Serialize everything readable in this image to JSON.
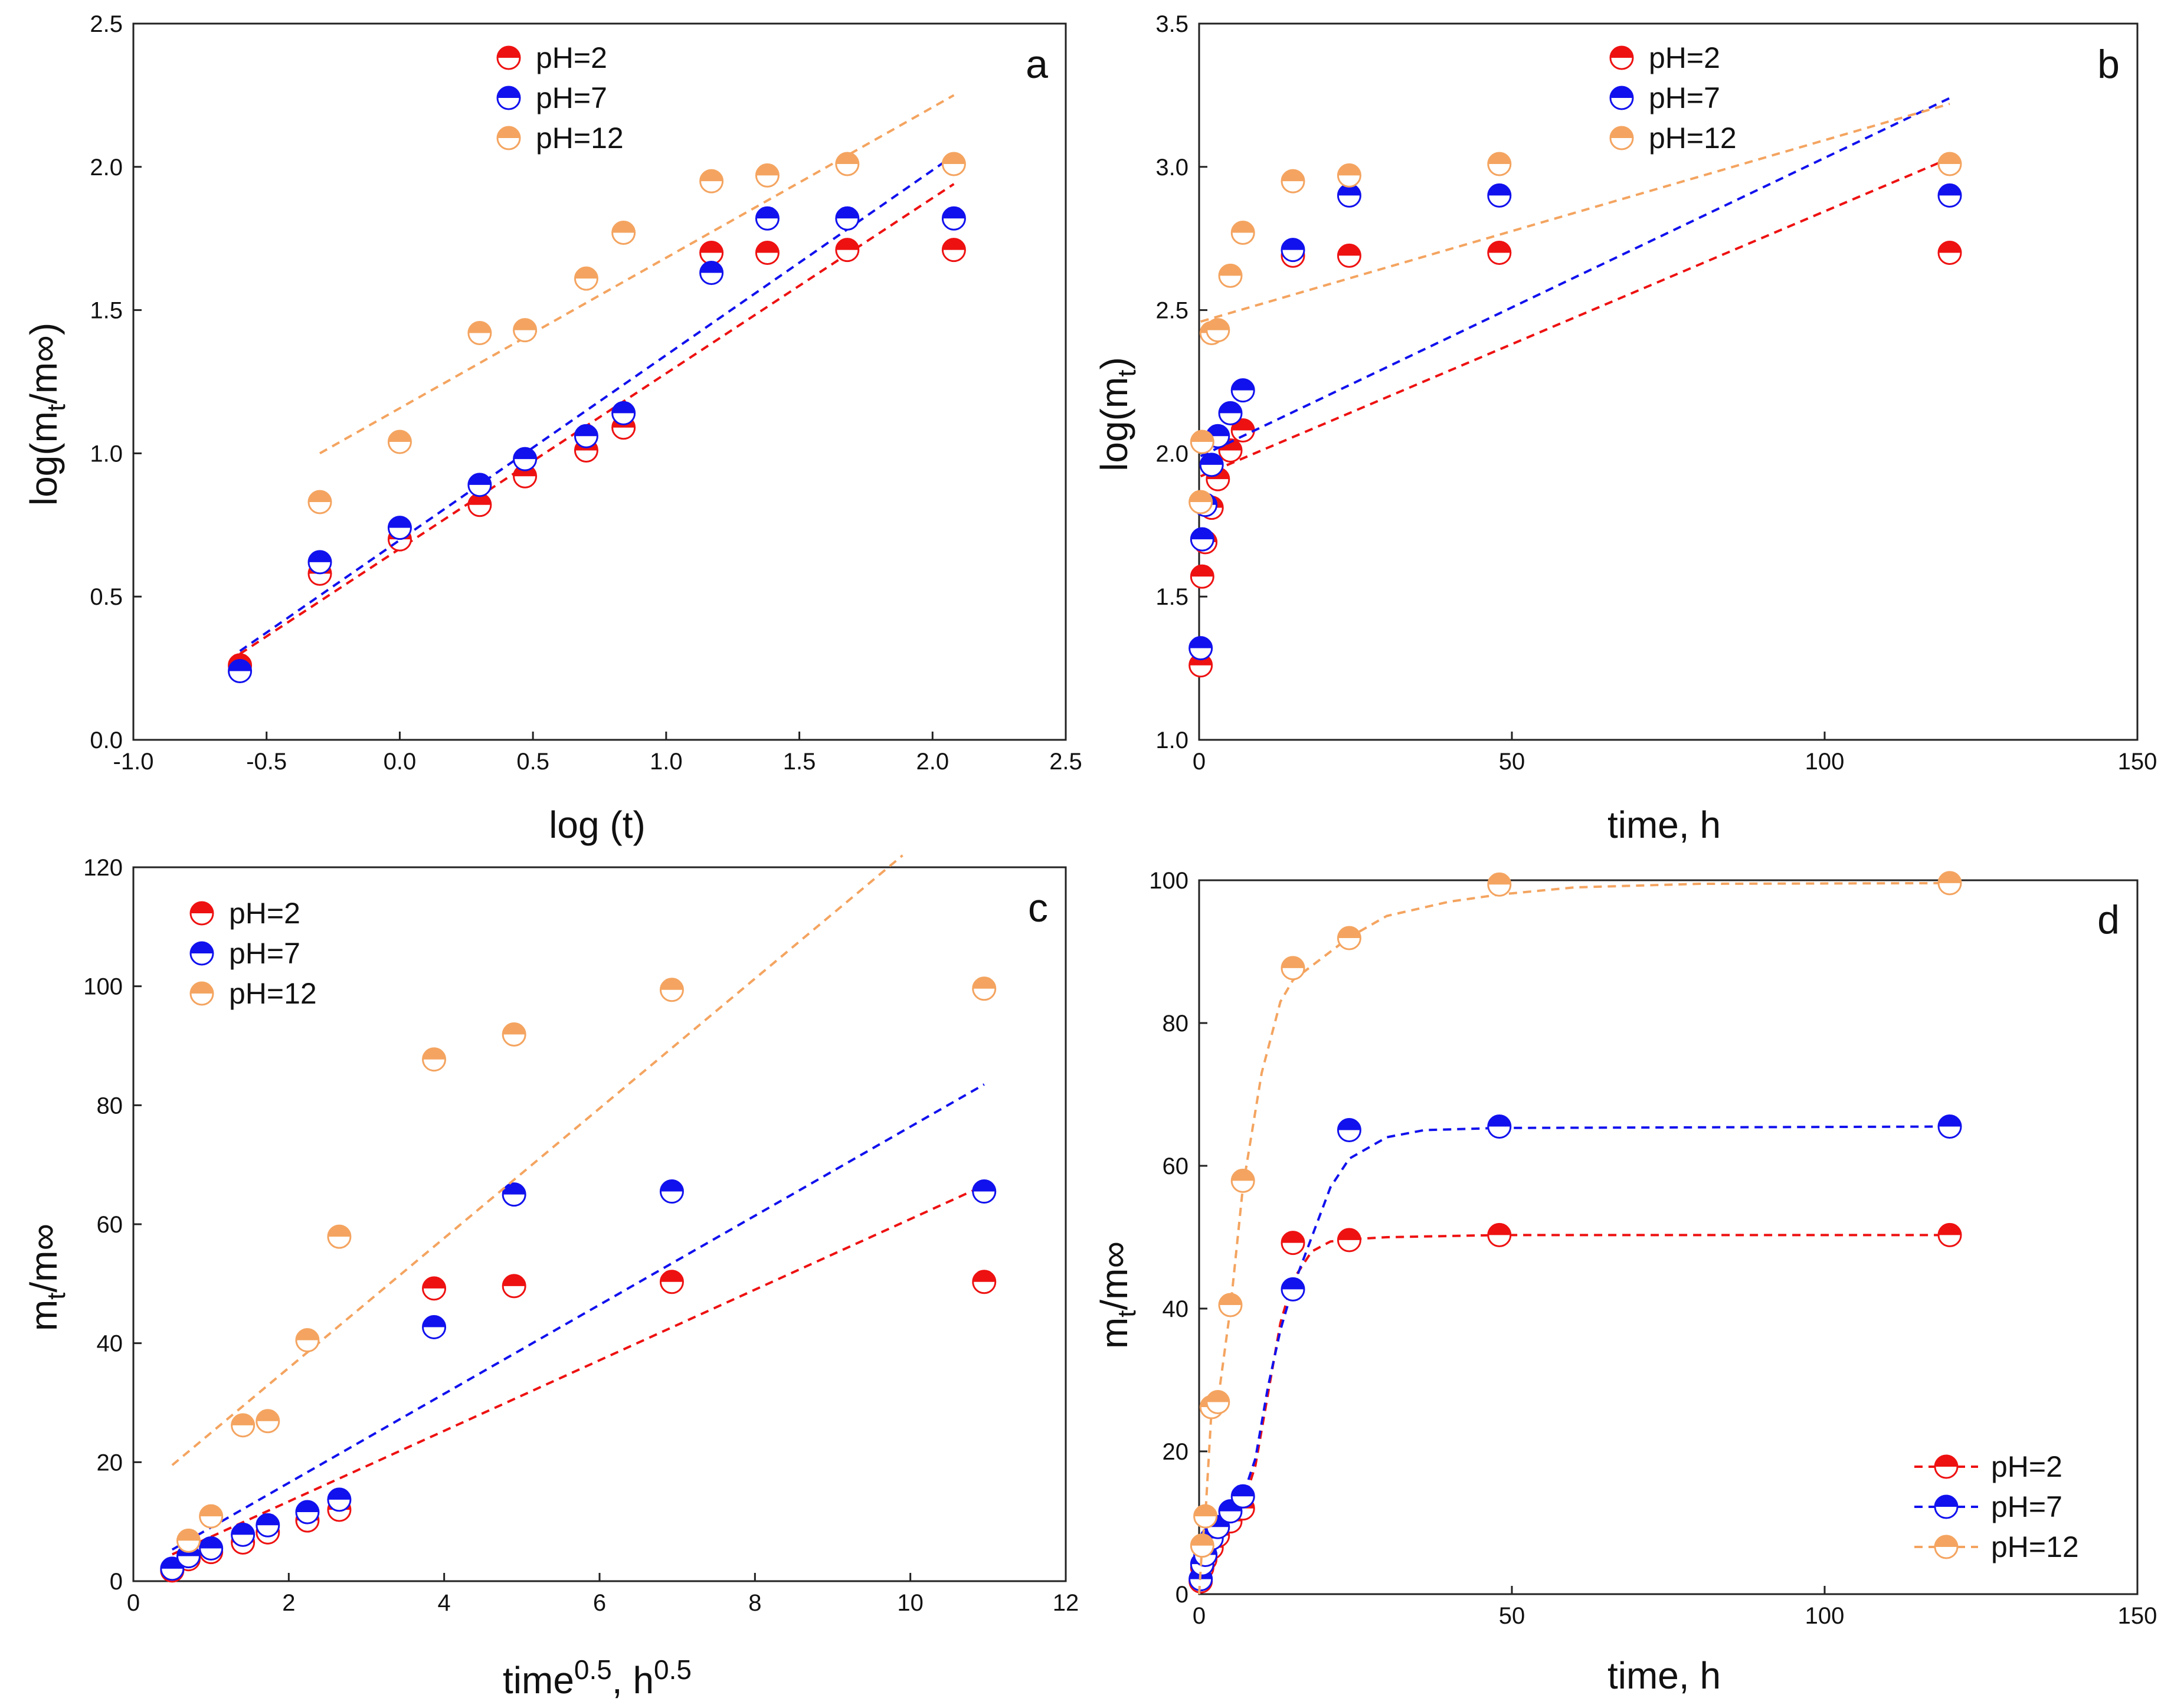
{
  "chart_data": [
    {
      "panel": "a",
      "type": "scatter",
      "title": "",
      "xlabel": "log (t)",
      "ylabel": "log(mt/m∞)",
      "xlim": [
        -1.0,
        2.5
      ],
      "ylim": [
        0.0,
        2.5
      ],
      "xticks": [
        "-1.0",
        "-0.5",
        "0.0",
        "0.5",
        "1.0",
        "1.5",
        "2.0",
        "2.5"
      ],
      "yticks": [
        "0.0",
        "0.5",
        "1.0",
        "1.5",
        "2.0",
        "2.5"
      ],
      "legend_position": "top-center",
      "series": [
        {
          "name": "pH=2",
          "color": "#ee1111",
          "points": [
            [
              -0.6,
              0.26
            ],
            [
              -0.3,
              0.58
            ],
            [
              0.0,
              0.7
            ],
            [
              0.3,
              0.82
            ],
            [
              0.47,
              0.92
            ],
            [
              0.7,
              1.01
            ],
            [
              0.84,
              1.09
            ],
            [
              1.17,
              1.7
            ],
            [
              1.38,
              1.7
            ],
            [
              1.68,
              1.71
            ],
            [
              2.08,
              1.71
            ]
          ],
          "fit": [
            [
              -0.6,
              0.3
            ],
            [
              2.08,
              1.94
            ]
          ]
        },
        {
          "name": "pH=7",
          "color": "#1111ee",
          "points": [
            [
              -0.6,
              0.24
            ],
            [
              -0.3,
              0.62
            ],
            [
              0.0,
              0.74
            ],
            [
              0.3,
              0.89
            ],
            [
              0.47,
              0.98
            ],
            [
              0.7,
              1.06
            ],
            [
              0.84,
              1.14
            ],
            [
              1.17,
              1.63
            ],
            [
              1.38,
              1.82
            ],
            [
              1.68,
              1.82
            ],
            [
              2.08,
              1.82
            ]
          ],
          "fit": [
            [
              -0.6,
              0.31
            ],
            [
              2.08,
              2.04
            ]
          ]
        },
        {
          "name": "pH=12",
          "color": "#f4a460",
          "points": [
            [
              -0.3,
              0.83
            ],
            [
              0.0,
              1.04
            ],
            [
              0.3,
              1.42
            ],
            [
              0.47,
              1.43
            ],
            [
              0.7,
              1.61
            ],
            [
              0.84,
              1.77
            ],
            [
              1.17,
              1.95
            ],
            [
              1.38,
              1.97
            ],
            [
              1.68,
              2.01
            ],
            [
              2.08,
              2.01
            ]
          ],
          "fit": [
            [
              -0.3,
              1.0
            ],
            [
              2.08,
              2.25
            ]
          ]
        }
      ]
    },
    {
      "panel": "b",
      "type": "scatter",
      "title": "",
      "xlabel": "time, h",
      "ylabel": "log(mt)",
      "xlim": [
        0,
        150
      ],
      "ylim": [
        1.0,
        3.5
      ],
      "xticks": [
        "0",
        "50",
        "100",
        "150"
      ],
      "yticks": [
        "1.0",
        "1.5",
        "2.0",
        "2.5",
        "3.0",
        "3.5"
      ],
      "legend_position": "top-center",
      "series": [
        {
          "name": "pH=2",
          "color": "#ee1111",
          "points": [
            [
              0.25,
              1.26
            ],
            [
              0.5,
              1.57
            ],
            [
              1,
              1.69
            ],
            [
              2,
              1.81
            ],
            [
              3,
              1.91
            ],
            [
              5,
              2.01
            ],
            [
              7,
              2.08
            ],
            [
              15,
              2.69
            ],
            [
              24,
              2.69
            ],
            [
              48,
              2.7
            ],
            [
              120,
              2.7
            ]
          ],
          "fit": [
            [
              0.25,
              1.92
            ],
            [
              120,
              3.03
            ]
          ]
        },
        {
          "name": "pH=7",
          "color": "#1111ee",
          "points": [
            [
              0.25,
              1.32
            ],
            [
              0.5,
              1.7
            ],
            [
              1,
              1.82
            ],
            [
              2,
              1.96
            ],
            [
              3,
              2.06
            ],
            [
              5,
              2.14
            ],
            [
              7,
              2.22
            ],
            [
              15,
              2.71
            ],
            [
              24,
              2.9
            ],
            [
              48,
              2.9
            ],
            [
              120,
              2.9
            ]
          ],
          "fit": [
            [
              0.25,
              1.99
            ],
            [
              120,
              3.24
            ]
          ]
        },
        {
          "name": "pH=12",
          "color": "#f4a460",
          "points": [
            [
              0.25,
              1.83
            ],
            [
              0.5,
              2.04
            ],
            [
              2,
              2.42
            ],
            [
              3,
              2.43
            ],
            [
              5,
              2.62
            ],
            [
              7,
              2.77
            ],
            [
              15,
              2.95
            ],
            [
              24,
              2.97
            ],
            [
              48,
              3.01
            ],
            [
              120,
              3.01
            ]
          ],
          "fit": [
            [
              0.25,
              2.46
            ],
            [
              120,
              3.22
            ]
          ]
        }
      ]
    },
    {
      "panel": "c",
      "type": "scatter",
      "title": "",
      "xlabel": "time0.5, h0.5",
      "ylabel": "mt/m∞",
      "xlim": [
        0,
        12
      ],
      "ylim": [
        0,
        120
      ],
      "xticks": [
        "0",
        "2",
        "4",
        "6",
        "8",
        "10",
        "12"
      ],
      "yticks": [
        "0",
        "20",
        "40",
        "60",
        "80",
        "100",
        "120"
      ],
      "legend_position": "top-left",
      "series": [
        {
          "name": "pH=2",
          "color": "#ee1111",
          "points": [
            [
              0.5,
              1.8
            ],
            [
              0.71,
              3.7
            ],
            [
              1.0,
              4.9
            ],
            [
              1.41,
              6.5
            ],
            [
              1.73,
              8.2
            ],
            [
              2.24,
              10.2
            ],
            [
              2.65,
              12.0
            ],
            [
              3.87,
              49.2
            ],
            [
              4.9,
              49.6
            ],
            [
              6.93,
              50.3
            ],
            [
              10.95,
              50.3
            ]
          ],
          "fit": [
            [
              0.5,
              4.5
            ],
            [
              10.95,
              66.5
            ]
          ]
        },
        {
          "name": "pH=7",
          "color": "#1111ee",
          "points": [
            [
              0.5,
              2.1
            ],
            [
              0.71,
              4.2
            ],
            [
              1.0,
              5.5
            ],
            [
              1.41,
              7.8
            ],
            [
              1.73,
              9.4
            ],
            [
              2.24,
              11.6
            ],
            [
              2.65,
              13.7
            ],
            [
              3.87,
              42.7
            ],
            [
              4.9,
              65.0
            ],
            [
              6.93,
              65.5
            ],
            [
              10.95,
              65.5
            ]
          ],
          "fit": [
            [
              0.5,
              5.3
            ],
            [
              10.95,
              83.5
            ]
          ]
        },
        {
          "name": "pH=12",
          "color": "#f4a460",
          "points": [
            [
              0.71,
              6.8
            ],
            [
              1.0,
              10.9
            ],
            [
              1.41,
              26.2
            ],
            [
              1.73,
              26.9
            ],
            [
              2.24,
              40.5
            ],
            [
              2.65,
              57.9
            ],
            [
              3.87,
              87.7
            ],
            [
              4.9,
              91.9
            ],
            [
              6.93,
              99.4
            ],
            [
              10.95,
              99.6
            ]
          ],
          "fit": [
            [
              0.5,
              19.5
            ],
            [
              9.9,
              122
            ]
          ]
        }
      ]
    },
    {
      "panel": "d",
      "type": "scatter",
      "title": "",
      "xlabel": "time, h",
      "ylabel": "mt/m∞",
      "xlim": [
        0,
        150
      ],
      "ylim": [
        0,
        100
      ],
      "xticks": [
        "0",
        "50",
        "100",
        "150"
      ],
      "yticks": [
        "0",
        "20",
        "40",
        "60",
        "80",
        "100"
      ],
      "legend_position": "bottom-right",
      "series": [
        {
          "name": "pH=2",
          "color": "#ee1111",
          "points": [
            [
              0.25,
              1.8
            ],
            [
              0.5,
              3.7
            ],
            [
              1,
              4.9
            ],
            [
              2,
              6.5
            ],
            [
              3,
              8.2
            ],
            [
              5,
              10.2
            ],
            [
              7,
              12.0
            ],
            [
              15,
              49.2
            ],
            [
              24,
              49.6
            ],
            [
              48,
              50.3
            ],
            [
              120,
              50.3
            ]
          ],
          "fit": [
            [
              0,
              0
            ],
            [
              1,
              4.5
            ],
            [
              2,
              6.5
            ],
            [
              3,
              8
            ],
            [
              5,
              10
            ],
            [
              7,
              12.5
            ],
            [
              9,
              18
            ],
            [
              11,
              28
            ],
            [
              13,
              38
            ],
            [
              15,
              44
            ],
            [
              18,
              48
            ],
            [
              21,
              49.4
            ],
            [
              24,
              49.7
            ],
            [
              30,
              50
            ],
            [
              48,
              50.3
            ],
            [
              120,
              50.3
            ]
          ]
        },
        {
          "name": "pH=7",
          "color": "#1111ee",
          "points": [
            [
              0.25,
              2.1
            ],
            [
              0.5,
              4.2
            ],
            [
              1,
              5.5
            ],
            [
              2,
              7.8
            ],
            [
              3,
              9.4
            ],
            [
              5,
              11.6
            ],
            [
              7,
              13.7
            ],
            [
              15,
              42.7
            ],
            [
              24,
              65.0
            ],
            [
              48,
              65.5
            ],
            [
              120,
              65.5
            ]
          ],
          "fit": [
            [
              0,
              0
            ],
            [
              1,
              5.5
            ],
            [
              2,
              7.8
            ],
            [
              3,
              9.4
            ],
            [
              5,
              11.6
            ],
            [
              7,
              13.7
            ],
            [
              9,
              19
            ],
            [
              11,
              29
            ],
            [
              13,
              37
            ],
            [
              15,
              43
            ],
            [
              18,
              50
            ],
            [
              21,
              57
            ],
            [
              24,
              61
            ],
            [
              30,
              64
            ],
            [
              36,
              65
            ],
            [
              48,
              65.3
            ],
            [
              120,
              65.5
            ]
          ]
        },
        {
          "name": "pH=12",
          "color": "#f4a460",
          "points": [
            [
              0.5,
              6.8
            ],
            [
              1,
              10.9
            ],
            [
              2,
              26.2
            ],
            [
              3,
              26.9
            ],
            [
              5,
              40.5
            ],
            [
              7,
              57.9
            ],
            [
              15,
              87.7
            ],
            [
              24,
              91.9
            ],
            [
              48,
              99.4
            ],
            [
              120,
              99.6
            ]
          ],
          "fit": [
            [
              0,
              0
            ],
            [
              0.5,
              7
            ],
            [
              1,
              11
            ],
            [
              2,
              26
            ],
            [
              3,
              27
            ],
            [
              5,
              40
            ],
            [
              7,
              57
            ],
            [
              10,
              73
            ],
            [
              13,
              83
            ],
            [
              15,
              86
            ],
            [
              18,
              88
            ],
            [
              24,
              92
            ],
            [
              30,
              95
            ],
            [
              40,
              97
            ],
            [
              48,
              98
            ],
            [
              60,
              99
            ],
            [
              80,
              99.5
            ],
            [
              120,
              99.6
            ]
          ]
        }
      ]
    }
  ]
}
